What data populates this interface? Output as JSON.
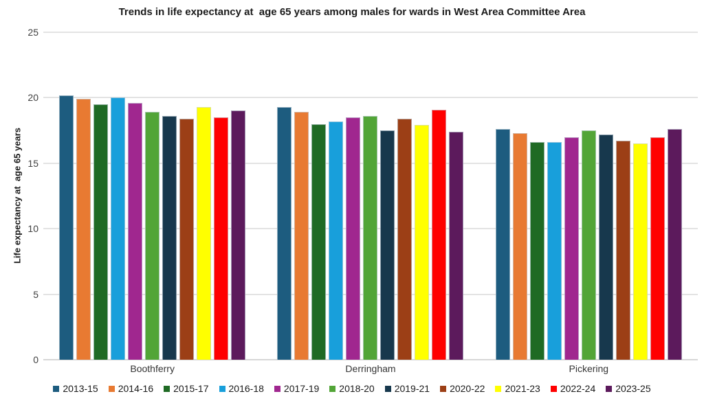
{
  "chart_data": {
    "type": "bar",
    "title": "Trends in life expectancy at  age 65 years among males for wards in West Area Committee Area",
    "xlabel": "",
    "ylabel": "Life expectancy at  age 65 years",
    "ylim": [
      0,
      25
    ],
    "yticks": [
      0,
      5,
      10,
      15,
      20,
      25
    ],
    "grid": true,
    "legend_position": "bottom",
    "categories": [
      "Boothferry",
      "Derringham",
      "Pickering"
    ],
    "series": [
      {
        "name": "2013-15",
        "color": "#1D5C7F",
        "values": [
          20.2,
          19.3,
          17.6
        ]
      },
      {
        "name": "2014-16",
        "color": "#E87A32",
        "values": [
          19.9,
          18.9,
          17.3
        ]
      },
      {
        "name": "2015-17",
        "color": "#1F6A24",
        "values": [
          19.5,
          18.0,
          16.6
        ]
      },
      {
        "name": "2016-18",
        "color": "#189FDB",
        "values": [
          20.0,
          18.2,
          16.6
        ]
      },
      {
        "name": "2017-19",
        "color": "#A0278F",
        "values": [
          19.6,
          18.5,
          17.0
        ]
      },
      {
        "name": "2018-20",
        "color": "#52A537",
        "values": [
          18.9,
          18.6,
          17.5
        ]
      },
      {
        "name": "2019-21",
        "color": "#17384D",
        "values": [
          18.6,
          17.5,
          17.2
        ]
      },
      {
        "name": "2020-22",
        "color": "#9C3F16",
        "values": [
          18.4,
          18.4,
          16.7
        ]
      },
      {
        "name": "2021-23",
        "color": "#FFFF00",
        "values": [
          19.3,
          17.9,
          16.5
        ]
      },
      {
        "name": "2022-24",
        "color": "#FF0000",
        "values": [
          18.5,
          19.1,
          17.0
        ]
      },
      {
        "name": "2023-25",
        "color": "#5C1A5C",
        "values": [
          19.0,
          17.4,
          17.6
        ]
      }
    ]
  },
  "colors": {
    "grid_line": "#E3E3E3",
    "axis_line": "#D6D6D6",
    "text": "#1A1A1A"
  }
}
